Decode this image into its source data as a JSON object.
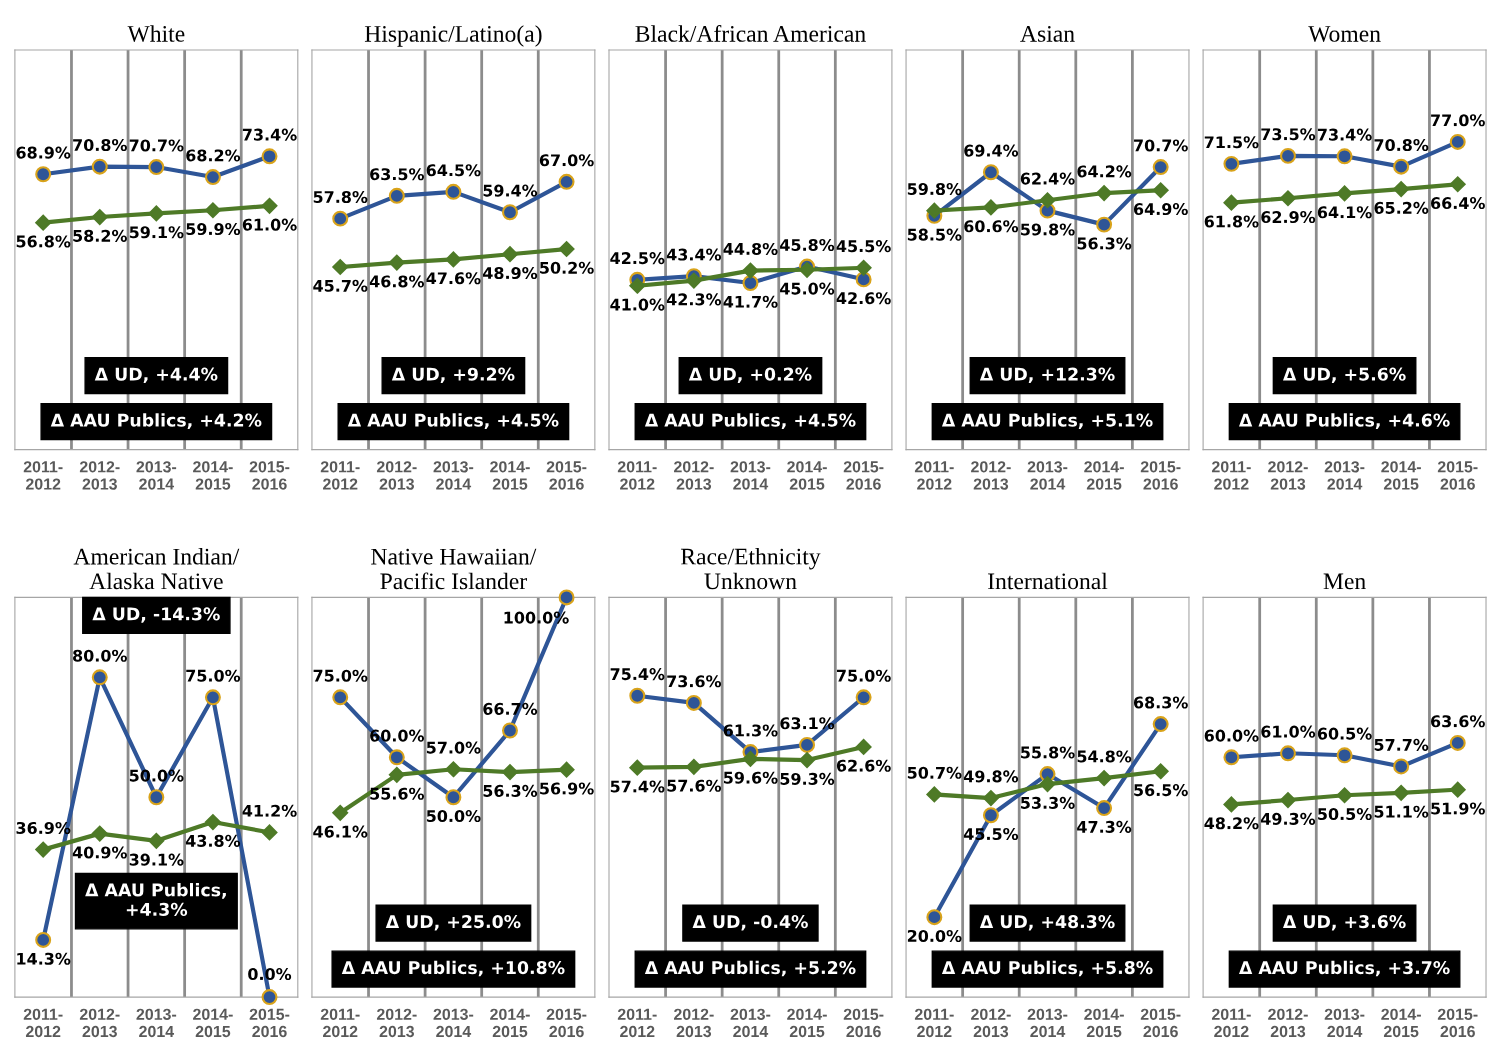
{
  "chart_data": [
    {
      "type": "line",
      "title": "White",
      "categories": [
        "2011-\n2012",
        "2012-\n2013",
        "2013-\n2014",
        "2014-\n2015",
        "2015-\n2016"
      ],
      "tick_labels": "x",
      "grid": "x",
      "series": [
        {
          "color": "#2e5597",
          "marker": "circle",
          "values": [
            68.9,
            70.8,
            70.7,
            68.2,
            73.4
          ],
          "value_labels": [
            "68.9%",
            "70.8%",
            "70.7%",
            "68.2%",
            "73.4%"
          ]
        },
        {
          "color": "#4e7a27",
          "marker": "diamond",
          "values": [
            56.8,
            58.2,
            59.1,
            59.9,
            61.0
          ],
          "value_labels": [
            "56.8%",
            "58.2%",
            "59.1%",
            "59.9%",
            "61.0%"
          ]
        }
      ],
      "annotations": [
        "Δ UD, +4.4%",
        "Δ AAU Publics, +4.2%"
      ]
    },
    {
      "type": "line",
      "title": "Hispanic/Latino(a)",
      "categories": [
        "2011-\n2012",
        "2012-\n2013",
        "2013-\n2014",
        "2014-\n2015",
        "2015-\n2016"
      ],
      "tick_labels": "x",
      "grid": "x",
      "series": [
        {
          "color": "#2e5597",
          "marker": "circle",
          "values": [
            57.8,
            63.5,
            64.5,
            59.4,
            67.0
          ],
          "value_labels": [
            "57.8%",
            "63.5%",
            "64.5%",
            "59.4%",
            "67.0%"
          ]
        },
        {
          "color": "#4e7a27",
          "marker": "diamond",
          "values": [
            45.7,
            46.8,
            47.6,
            48.9,
            50.2
          ],
          "value_labels": [
            "45.7%",
            "46.8%",
            "47.6%",
            "48.9%",
            "50.2%"
          ]
        }
      ],
      "annotations": [
        "Δ UD, +9.2%",
        "Δ AAU Publics, +4.5%"
      ]
    },
    {
      "type": "line",
      "title": "Black/African American",
      "categories": [
        "2011-\n2012",
        "2012-\n2013",
        "2013-\n2014",
        "2014-\n2015",
        "2015-\n2016"
      ],
      "tick_labels": "x",
      "grid": "x",
      "series": [
        {
          "color": "#2e5597",
          "marker": "circle",
          "values": [
            42.5,
            43.4,
            41.7,
            45.8,
            42.6
          ],
          "value_labels": [
            "42.5%",
            "43.4%",
            "41.7%",
            "45.8%",
            "42.6%"
          ]
        },
        {
          "color": "#4e7a27",
          "marker": "diamond",
          "values": [
            41.0,
            42.3,
            44.8,
            45.0,
            45.5
          ],
          "value_labels": [
            "41.0%",
            "42.3%",
            "44.8%",
            "45.0%",
            "45.5%"
          ]
        }
      ],
      "annotations": [
        "Δ UD, +0.2%",
        "Δ AAU Publics, +4.5%"
      ]
    },
    {
      "type": "line",
      "title": "Asian",
      "categories": [
        "2011-\n2012",
        "2012-\n2013",
        "2013-\n2014",
        "2014-\n2015",
        "2015-\n2016"
      ],
      "tick_labels": "x",
      "grid": "x",
      "series": [
        {
          "color": "#2e5597",
          "marker": "circle",
          "values": [
            58.5,
            69.4,
            59.8,
            56.3,
            70.7
          ],
          "value_labels": [
            "58.5%",
            "69.4%",
            "59.8%",
            "56.3%",
            "70.7%"
          ]
        },
        {
          "color": "#4e7a27",
          "marker": "diamond",
          "values": [
            59.8,
            60.6,
            62.4,
            64.2,
            64.9
          ],
          "value_labels": [
            "59.8%",
            "60.6%",
            "62.4%",
            "64.2%",
            "64.9%"
          ]
        }
      ],
      "annotations": [
        "Δ UD, +12.3%",
        "Δ AAU Publics, +5.1%"
      ]
    },
    {
      "type": "line",
      "title": "Women",
      "categories": [
        "2011-\n2012",
        "2012-\n2013",
        "2013-\n2014",
        "2014-\n2015",
        "2015-\n2016"
      ],
      "tick_labels": "x",
      "grid": "x",
      "series": [
        {
          "color": "#2e5597",
          "marker": "circle",
          "values": [
            71.5,
            73.5,
            73.4,
            70.8,
            77.0
          ],
          "value_labels": [
            "71.5%",
            "73.5%",
            "73.4%",
            "70.8%",
            "77.0%"
          ]
        },
        {
          "color": "#4e7a27",
          "marker": "diamond",
          "values": [
            61.8,
            62.9,
            64.1,
            65.2,
            66.4
          ],
          "value_labels": [
            "61.8%",
            "62.9%",
            "64.1%",
            "65.2%",
            "66.4%"
          ]
        }
      ],
      "annotations": [
        "Δ UD, +5.6%",
        "Δ AAU Publics, +4.6%"
      ]
    },
    {
      "type": "line",
      "title": "American Indian/\nAlaska Native",
      "categories": [
        "2011-\n2012",
        "2012-\n2013",
        "2013-\n2014",
        "2014-\n2015",
        "2015-\n2016"
      ],
      "tick_labels": "x",
      "grid": "x",
      "series": [
        {
          "color": "#2e5597",
          "marker": "circle",
          "values": [
            14.3,
            80.0,
            50.0,
            75.0,
            0.0
          ],
          "value_labels": [
            "14.3%",
            "80.0%",
            "50.0%",
            "75.0%",
            "0.0%"
          ]
        },
        {
          "color": "#4e7a27",
          "marker": "diamond",
          "values": [
            36.9,
            40.9,
            39.1,
            43.8,
            41.2
          ],
          "value_labels": [
            "36.9%",
            "40.9%",
            "39.1%",
            "43.8%",
            "41.2%"
          ]
        }
      ],
      "annotations": [
        "Δ UD, -14.3%",
        "Δ AAU Publics,\n+4.3%"
      ]
    },
    {
      "type": "line",
      "title": "Native Hawaiian/\nPacific Islander",
      "categories": [
        "2011-\n2012",
        "2012-\n2013",
        "2013-\n2014",
        "2014-\n2015",
        "2015-\n2016"
      ],
      "tick_labels": "x",
      "grid": "x",
      "series": [
        {
          "color": "#2e5597",
          "marker": "circle",
          "values": [
            75.0,
            60.0,
            50.0,
            66.7,
            100.0
          ],
          "value_labels": [
            "75.0%",
            "60.0%",
            "50.0%",
            "66.7%",
            "100.0%"
          ]
        },
        {
          "color": "#4e7a27",
          "marker": "diamond",
          "values": [
            46.1,
            55.6,
            57.0,
            56.3,
            56.9
          ],
          "value_labels": [
            "46.1%",
            "55.6%",
            "57.0%",
            "56.3%",
            "56.9%"
          ]
        }
      ],
      "annotations": [
        "Δ UD, +25.0%",
        "Δ AAU Publics, +10.8%"
      ]
    },
    {
      "type": "line",
      "title": "Race/Ethnicity\nUnknown",
      "categories": [
        "2011-\n2012",
        "2012-\n2013",
        "2013-\n2014",
        "2014-\n2015",
        "2015-\n2016"
      ],
      "tick_labels": "x",
      "grid": "x",
      "series": [
        {
          "color": "#2e5597",
          "marker": "circle",
          "values": [
            75.4,
            73.6,
            61.3,
            63.1,
            75.0
          ],
          "value_labels": [
            "75.4%",
            "73.6%",
            "61.3%",
            "63.1%",
            "75.0%"
          ]
        },
        {
          "color": "#4e7a27",
          "marker": "diamond",
          "values": [
            57.4,
            57.6,
            59.6,
            59.3,
            62.6
          ],
          "value_labels": [
            "57.4%",
            "57.6%",
            "59.6%",
            "59.3%",
            "62.6%"
          ]
        }
      ],
      "annotations": [
        "Δ UD, -0.4%",
        "Δ AAU Publics, +5.2%"
      ]
    },
    {
      "type": "line",
      "title": "International",
      "categories": [
        "2011-\n2012",
        "2012-\n2013",
        "2013-\n2014",
        "2014-\n2015",
        "2015-\n2016"
      ],
      "tick_labels": "x",
      "grid": "x",
      "series": [
        {
          "color": "#2e5597",
          "marker": "circle",
          "values": [
            20.0,
            45.5,
            55.8,
            47.3,
            68.3
          ],
          "value_labels": [
            "20.0%",
            "45.5%",
            "55.8%",
            "47.3%",
            "68.3%"
          ]
        },
        {
          "color": "#4e7a27",
          "marker": "diamond",
          "values": [
            50.7,
            49.8,
            53.3,
            54.8,
            56.5
          ],
          "value_labels": [
            "50.7%",
            "49.8%",
            "53.3%",
            "54.8%",
            "56.5%"
          ]
        }
      ],
      "annotations": [
        "Δ UD, +48.3%",
        "Δ AAU Publics, +5.8%"
      ]
    },
    {
      "type": "line",
      "title": "Men",
      "categories": [
        "2011-\n2012",
        "2012-\n2013",
        "2013-\n2014",
        "2014-\n2015",
        "2015-\n2016"
      ],
      "tick_labels": "x",
      "grid": "x",
      "series": [
        {
          "color": "#2e5597",
          "marker": "circle",
          "values": [
            60.0,
            61.0,
            60.5,
            57.7,
            63.6
          ],
          "value_labels": [
            "60.0%",
            "61.0%",
            "60.5%",
            "57.7%",
            "63.6%"
          ]
        },
        {
          "color": "#4e7a27",
          "marker": "diamond",
          "values": [
            48.2,
            49.3,
            50.5,
            51.1,
            51.9
          ],
          "value_labels": [
            "48.2%",
            "49.3%",
            "50.5%",
            "51.1%",
            "51.9%"
          ]
        }
      ],
      "annotations": [
        "Δ UD, +3.6%",
        "Δ AAU Publics, +3.7%"
      ]
    }
  ]
}
